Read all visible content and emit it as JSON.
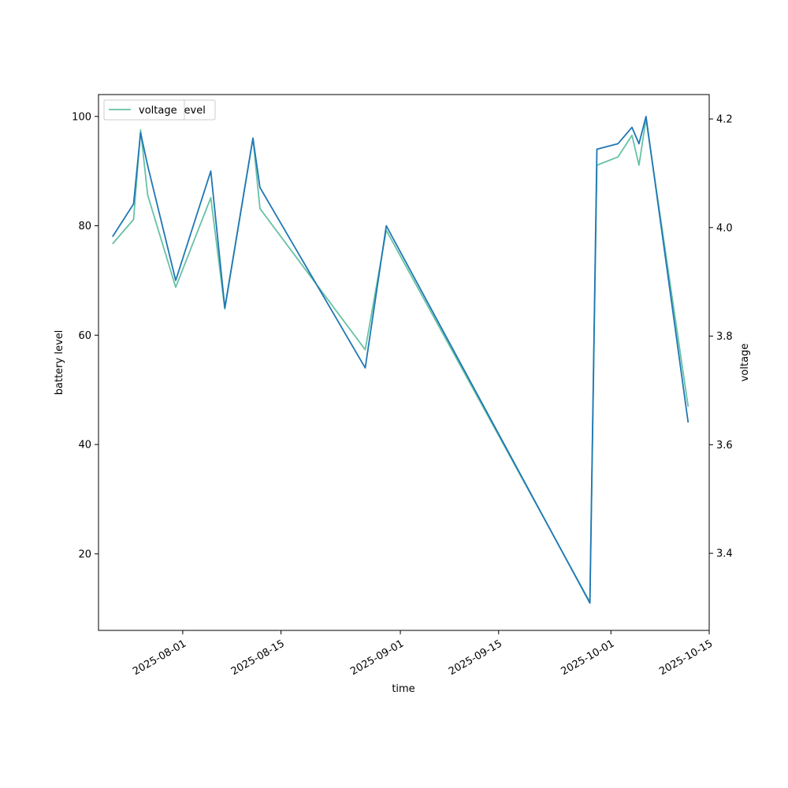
{
  "chart_data": {
    "type": "line",
    "xlabel": "time",
    "ylabel_left": "battery level",
    "ylabel_right": "voltage",
    "x_range": [
      "2025-07-20",
      "2025-10-15"
    ],
    "ylim_left": [
      6,
      104
    ],
    "ylim_right": [
      3.258,
      4.245
    ],
    "x_ticks": [
      "2025-08-01",
      "2025-08-15",
      "2025-09-01",
      "2025-09-15",
      "2025-10-01",
      "2025-10-15"
    ],
    "y_ticks_left": [
      20,
      40,
      60,
      80,
      100
    ],
    "y_ticks_right": [
      3.4,
      3.6,
      3.8,
      4.0,
      4.2
    ],
    "legend": {
      "placement": "upper-left",
      "overlapped_entries": [
        "battery_level",
        "voltage"
      ]
    },
    "grid": false,
    "series": [
      {
        "name": "battery_level",
        "axis": "left",
        "color": "#1f77b4",
        "x": [
          "2025-07-22",
          "2025-07-25",
          "2025-07-26",
          "2025-07-27",
          "2025-07-31",
          "2025-08-05",
          "2025-08-07",
          "2025-08-11",
          "2025-08-12",
          "2025-08-27",
          "2025-08-30",
          "2025-09-28",
          "2025-09-29",
          "2025-10-02",
          "2025-10-04",
          "2025-10-05",
          "2025-10-06",
          "2025-10-12"
        ],
        "y": [
          78,
          84,
          97,
          91,
          70,
          90,
          65,
          96,
          87,
          54,
          80,
          11,
          94,
          95,
          98,
          95,
          100,
          44
        ]
      },
      {
        "name": "voltage",
        "axis": "right",
        "color": "#66c2a5",
        "x": [
          "2025-07-22",
          "2025-07-25",
          "2025-07-26",
          "2025-07-27",
          "2025-07-31",
          "2025-08-05",
          "2025-08-07",
          "2025-08-11",
          "2025-08-12",
          "2025-08-27",
          "2025-08-30",
          "2025-09-28",
          "2025-09-29",
          "2025-10-02",
          "2025-10-04",
          "2025-10-05",
          "2025-10-06",
          "2025-10-12"
        ],
        "y": [
          3.97,
          4.015,
          4.18,
          4.06,
          3.89,
          4.055,
          3.85,
          4.165,
          4.035,
          3.775,
          3.995,
          3.31,
          4.115,
          4.13,
          4.17,
          4.115,
          4.2,
          3.67
        ]
      }
    ]
  }
}
